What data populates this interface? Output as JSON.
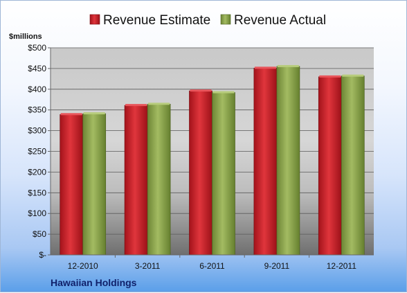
{
  "chart_data": {
    "type": "bar",
    "categories": [
      "12-2010",
      "3-2011",
      "6-2011",
      "9-2011",
      "12-2011"
    ],
    "series": [
      {
        "name": "Revenue Estimate",
        "values": [
          339,
          361,
          396,
          451,
          430
        ],
        "color": "#c8202a"
      },
      {
        "name": "Revenue Actual",
        "values": [
          341,
          364,
          392,
          455,
          432
        ],
        "color": "#8aa24a"
      }
    ],
    "ylabel": "$millions",
    "ylim": [
      0,
      500
    ],
    "yticks": [
      {
        "value": 0,
        "label": "$-"
      },
      {
        "value": 50,
        "label": "$50"
      },
      {
        "value": 100,
        "label": "$100"
      },
      {
        "value": 150,
        "label": "$150"
      },
      {
        "value": 200,
        "label": "$200"
      },
      {
        "value": 250,
        "label": "$250"
      },
      {
        "value": 300,
        "label": "$300"
      },
      {
        "value": 350,
        "label": "$350"
      },
      {
        "value": 400,
        "label": "$400"
      },
      {
        "value": 450,
        "label": "$450"
      },
      {
        "value": 500,
        "label": "$500"
      }
    ],
    "grid": true,
    "legend": "top",
    "caption": "Hawaiian Holdings"
  }
}
